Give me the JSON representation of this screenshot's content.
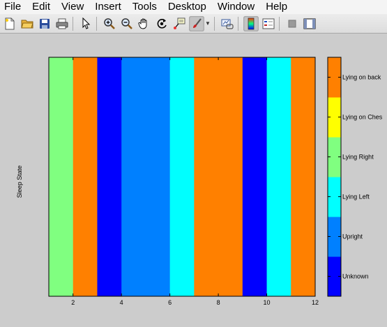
{
  "menu": [
    "File",
    "Edit",
    "View",
    "Insert",
    "Tools",
    "Desktop",
    "Window",
    "Help"
  ],
  "toolbar": {
    "icons": [
      "new-file",
      "open-folder",
      "save",
      "print",
      "pointer",
      "zoom-in",
      "zoom-out",
      "pan-hand",
      "rotate-3d",
      "data-cursor",
      "brush",
      "link-plot",
      "colorbar",
      "legend",
      "hide-plot-tools",
      "show-plot-tools"
    ]
  },
  "plot": {
    "ylabel": "Sleep State",
    "xticks": [
      "2",
      "4",
      "6",
      "8",
      "10",
      "12"
    ]
  },
  "chart_data": {
    "type": "heatmap",
    "title": "",
    "xlabel": "",
    "ylabel": "Sleep State",
    "xlim": [
      1,
      12
    ],
    "x": [
      1,
      2,
      3,
      4,
      5,
      6,
      7,
      8,
      9,
      10,
      11
    ],
    "values": [
      3,
      5,
      0,
      1,
      1,
      2,
      5,
      5,
      0,
      2,
      5
    ],
    "color_scale": {
      "labels": [
        "Unknown",
        "Upright",
        "Lying Left",
        "Lying Right",
        "Lying on Ches",
        "Lying on back"
      ],
      "colors": [
        "#0000ff",
        "#0080ff",
        "#00ffff",
        "#80ff80",
        "#ffff00",
        "#ff8000"
      ]
    },
    "grid": false,
    "colorbar": "right"
  }
}
